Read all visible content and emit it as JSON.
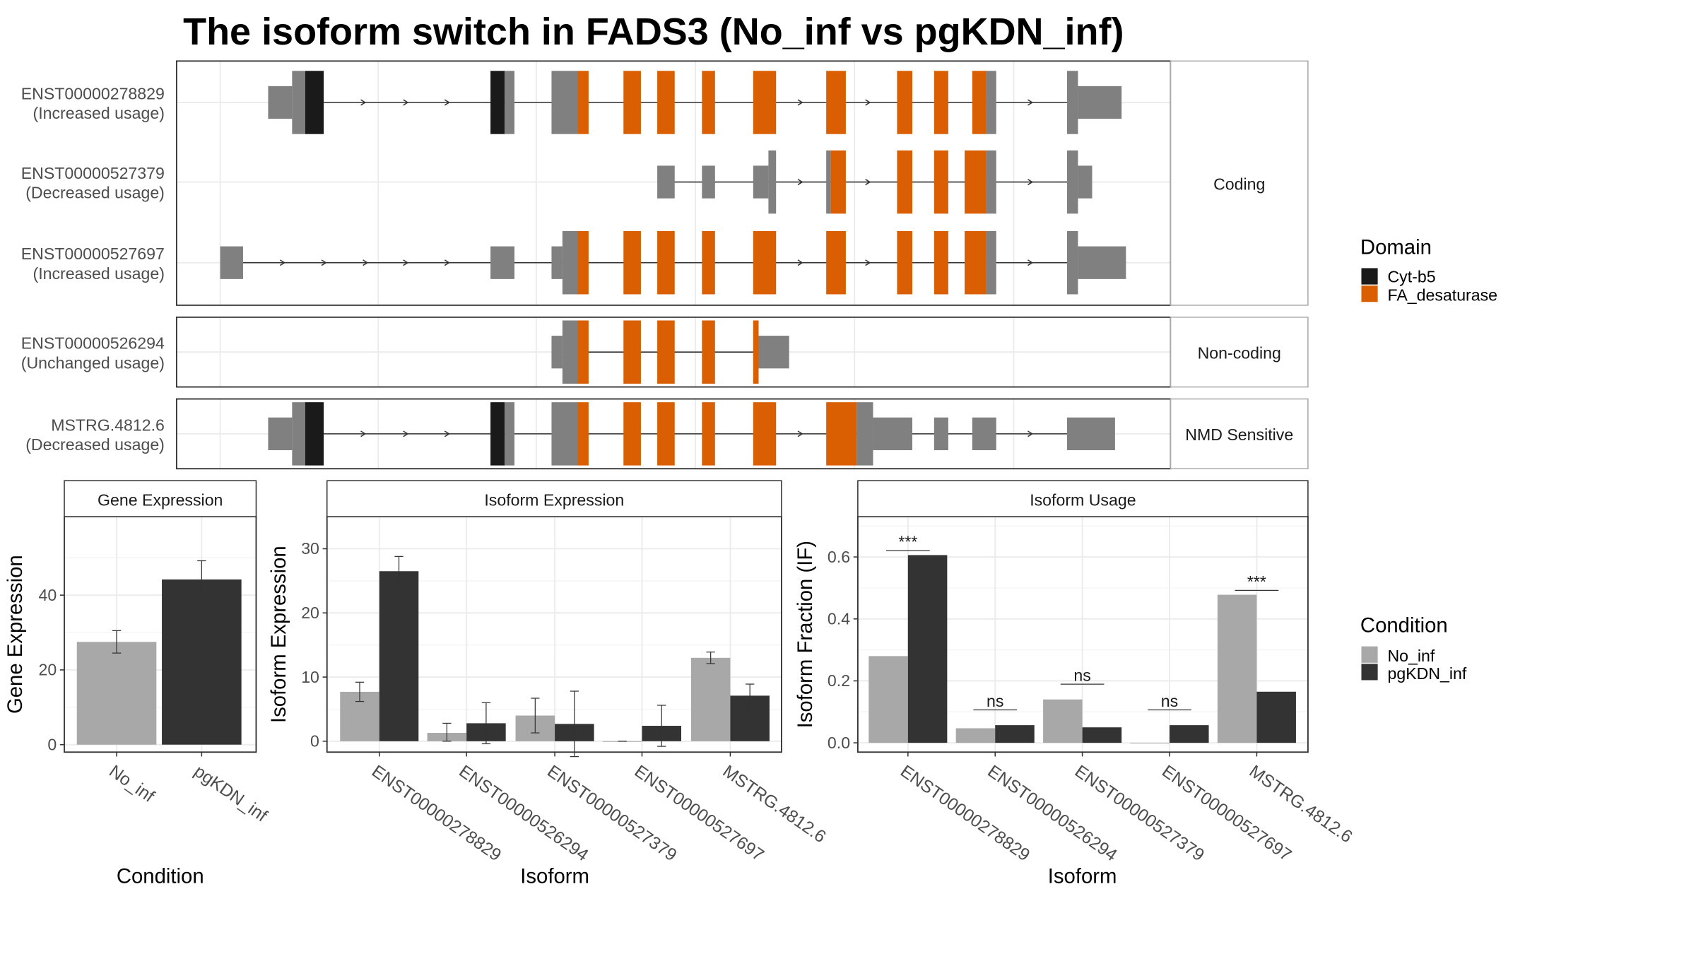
{
  "title": "The isoform switch in FADS3 (No_inf vs pgKDN_inf)",
  "colors": {
    "no_inf": "#a8a8a8",
    "pgkdn_inf": "#333333",
    "cytb5": "#1a1a1a",
    "fa_desaturase": "#d95f02",
    "exon": "#808080"
  },
  "structure_panels": [
    {
      "label": "Coding",
      "isoforms": [
        {
          "id": "ENST00000278829",
          "usage": "(Increased usage)"
        },
        {
          "id": "ENST00000527379",
          "usage": "(Decreased usage)"
        },
        {
          "id": "ENST00000527697",
          "usage": "(Increased usage)"
        }
      ]
    },
    {
      "label": "Non-coding",
      "isoforms": [
        {
          "id": "ENST00000526294",
          "usage": "(Unchanged usage)"
        }
      ]
    },
    {
      "label": "NMD Sensitive",
      "isoforms": [
        {
          "id": "MSTRG.4812.6",
          "usage": "(Decreased usage)"
        }
      ]
    }
  ],
  "legend_domain": {
    "title": "Domain",
    "items": [
      {
        "label": "Cyt-b5",
        "color": "#1a1a1a"
      },
      {
        "label": "FA_desaturase",
        "color": "#d95f02"
      }
    ]
  },
  "legend_condition": {
    "title": "Condition",
    "items": [
      {
        "label": "No_inf",
        "color": "#a8a8a8"
      },
      {
        "label": "pgKDN_inf",
        "color": "#333333"
      }
    ]
  },
  "chart_data": [
    {
      "type": "bar",
      "title": "Gene Expression",
      "xlabel": "Condition",
      "ylabel": "Gene Expression",
      "categories": [
        "No_inf",
        "pgKDN_inf"
      ],
      "values": [
        27.5,
        44.2
      ],
      "errors": [
        [
          24.5,
          30.5
        ],
        [
          39.3,
          49.2
        ]
      ],
      "ylim": [
        -2,
        61
      ],
      "yticks": [
        0,
        20,
        40
      ]
    },
    {
      "type": "bar",
      "title": "Isoform Expression",
      "xlabel": "Isoform",
      "ylabel": "Isoform Expression",
      "categories": [
        "ENST00000278829",
        "ENST00000526294",
        "ENST00000527379",
        "ENST00000527697",
        "MSTRG.4812.6"
      ],
      "series": [
        {
          "name": "No_inf",
          "values": [
            7.7,
            1.3,
            4.0,
            0.0,
            13.0
          ],
          "errors": [
            [
              6.2,
              9.2
            ],
            [
              0.0,
              2.8
            ],
            [
              1.3,
              6.7
            ],
            [
              0.0,
              0.0
            ],
            [
              12.1,
              13.9
            ]
          ]
        },
        {
          "name": "pgKDN_inf",
          "values": [
            26.5,
            2.8,
            2.7,
            2.4,
            7.1
          ],
          "errors": [
            [
              24.2,
              28.8
            ],
            [
              -0.4,
              6.0
            ],
            [
              -2.4,
              7.8
            ],
            [
              -0.8,
              5.6
            ],
            [
              5.3,
              8.9
            ]
          ]
        }
      ],
      "ylim": [
        -1.7,
        35
      ],
      "yticks": [
        0,
        10,
        20,
        30
      ]
    },
    {
      "type": "bar",
      "title": "Isoform Usage",
      "xlabel": "Isoform",
      "ylabel": "Isoform Fraction (IF)",
      "categories": [
        "ENST00000278829",
        "ENST00000526294",
        "ENST00000527379",
        "ENST00000527697",
        "MSTRG.4812.6"
      ],
      "series": [
        {
          "name": "No_inf",
          "values": [
            0.28,
            0.047,
            0.14,
            0.0,
            0.478
          ]
        },
        {
          "name": "pgKDN_inf",
          "values": [
            0.606,
            0.057,
            0.05,
            0.057,
            0.165
          ]
        }
      ],
      "significance": [
        "***",
        "ns",
        "ns",
        "ns",
        "***"
      ],
      "ylim": [
        -0.03,
        0.73
      ],
      "yticks": [
        "0.0",
        "0.2",
        "0.4",
        "0.6"
      ]
    }
  ]
}
